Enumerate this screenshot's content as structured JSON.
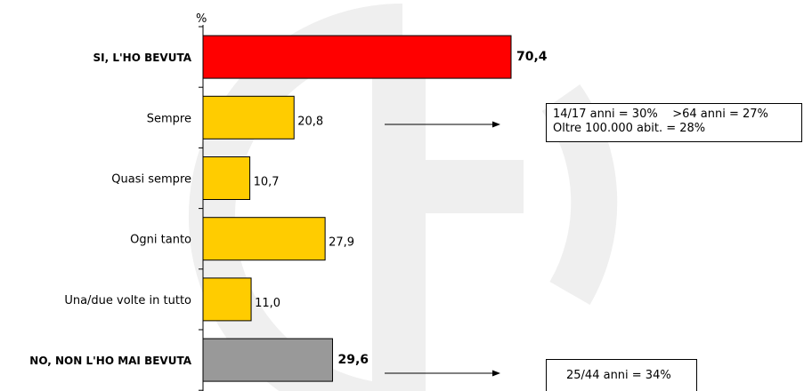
{
  "chart_data": {
    "type": "bar",
    "orientation": "horizontal",
    "ylabel": "%",
    "categories": [
      "SI, L'HO BEVUTA",
      "Sempre",
      "Quasi sempre",
      "Ogni tanto",
      "Una/due volte in tutto",
      "NO, NON L'HO MAI BEVUTA"
    ],
    "values": [
      70.4,
      20.8,
      10.7,
      27.9,
      11.0,
      29.6
    ],
    "value_labels": [
      "70,4",
      "20,8",
      "10,7",
      "27,9",
      "11,0",
      "29,6"
    ],
    "bold": [
      true,
      false,
      false,
      false,
      false,
      true
    ],
    "colors": [
      "#ff0000",
      "#ffcc00",
      "#ffcc00",
      "#ffcc00",
      "#ffcc00",
      "#999999"
    ],
    "xlim": [
      0,
      70.4
    ],
    "grid": false,
    "legend": "none"
  },
  "annotations": {
    "sempre_note": [
      "14/17 anni = 30%    >64 anni = 27%",
      "Oltre 100.000 abit. = 28%"
    ],
    "mai_note": [
      "25/44 anni = 34%"
    ]
  },
  "colors": {
    "watermark": "#efefef",
    "axis": "#000000"
  }
}
